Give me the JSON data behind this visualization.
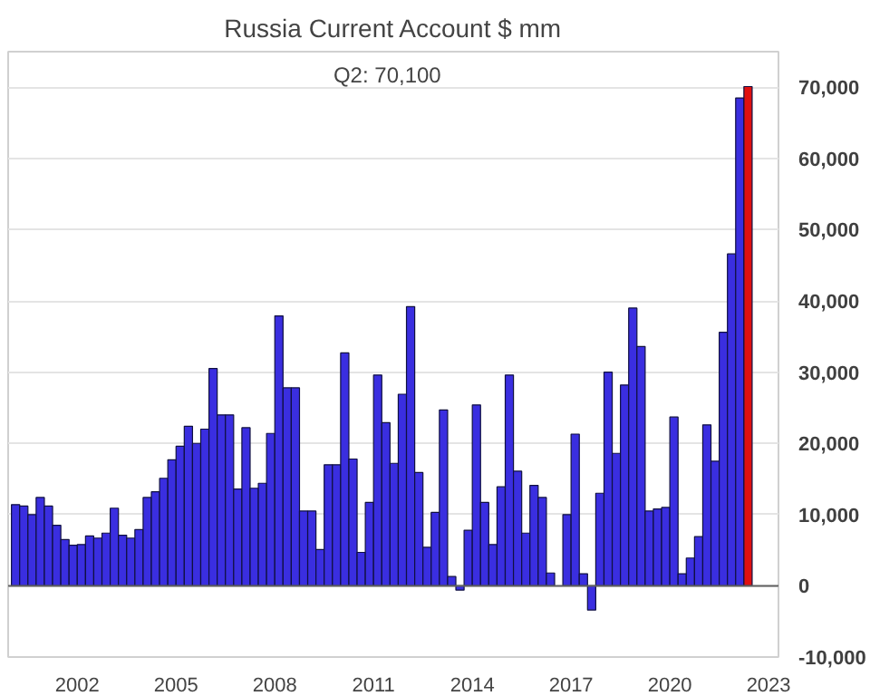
{
  "chart_data": {
    "type": "bar",
    "title": "Russia Current Account $ mm",
    "annotations": [
      "Q2:   70,100"
    ],
    "x": [
      2000.125,
      2000.375,
      2000.625,
      2000.875,
      2001.125,
      2001.375,
      2001.625,
      2001.875,
      2002.125,
      2002.375,
      2002.625,
      2002.875,
      2003.125,
      2003.375,
      2003.625,
      2003.875,
      2004.125,
      2004.375,
      2004.625,
      2004.875,
      2005.125,
      2005.375,
      2005.625,
      2005.875,
      2006.125,
      2006.375,
      2006.625,
      2006.875,
      2007.125,
      2007.375,
      2007.625,
      2007.875,
      2008.125,
      2008.375,
      2008.625,
      2008.875,
      2009.125,
      2009.375,
      2009.625,
      2009.875,
      2010.125,
      2010.375,
      2010.625,
      2010.875,
      2011.125,
      2011.375,
      2011.625,
      2011.875,
      2012.125,
      2012.375,
      2012.625,
      2012.875,
      2013.125,
      2013.375,
      2013.625,
      2013.875,
      2014.125,
      2014.375,
      2014.625,
      2014.875,
      2015.125,
      2015.375,
      2015.625,
      2015.875,
      2016.125,
      2016.375,
      2016.625,
      2016.875,
      2017.125,
      2017.375,
      2017.625,
      2017.875,
      2018.125,
      2018.375,
      2018.625,
      2018.875,
      2019.125,
      2019.375,
      2019.625,
      2019.875,
      2020.125,
      2020.375,
      2020.625,
      2020.875,
      2021.125,
      2021.375,
      2021.625,
      2021.875,
      2022.125,
      2022.375
    ],
    "values": [
      11400,
      11200,
      10000,
      12400,
      11200,
      8500,
      6500,
      5700,
      5800,
      7000,
      6700,
      7400,
      10900,
      7100,
      6700,
      7900,
      12400,
      13200,
      15100,
      17700,
      19600,
      22400,
      20000,
      22000,
      30500,
      24000,
      24000,
      13600,
      22200,
      13700,
      14400,
      21400,
      37900,
      27800,
      27800,
      10500,
      10500,
      5100,
      17000,
      17000,
      32700,
      17800,
      4700,
      11700,
      29600,
      22900,
      17200,
      26900,
      39200,
      15900,
      5400,
      10300,
      24700,
      1300,
      -600,
      7800,
      25400,
      11700,
      5800,
      13900,
      29600,
      16100,
      7400,
      14100,
      12400,
      1800,
      null,
      10000,
      21300,
      1700,
      -3400,
      13000,
      30000,
      18600,
      28200,
      39000,
      33600,
      10500,
      10800,
      11000,
      23700,
      1700,
      3900,
      6900,
      22600,
      17500,
      35600,
      46600,
      68500,
      70100
    ],
    "colors": [
      "#3a2ee0",
      "#3a2ee0",
      "#3a2ee0",
      "#3a2ee0",
      "#3a2ee0",
      "#3a2ee0",
      "#3a2ee0",
      "#3a2ee0",
      "#3a2ee0",
      "#3a2ee0",
      "#3a2ee0",
      "#3a2ee0",
      "#3a2ee0",
      "#3a2ee0",
      "#3a2ee0",
      "#3a2ee0",
      "#3a2ee0",
      "#3a2ee0",
      "#3a2ee0",
      "#3a2ee0",
      "#3a2ee0",
      "#3a2ee0",
      "#3a2ee0",
      "#3a2ee0",
      "#3a2ee0",
      "#3a2ee0",
      "#3a2ee0",
      "#3a2ee0",
      "#3a2ee0",
      "#3a2ee0",
      "#3a2ee0",
      "#3a2ee0",
      "#3a2ee0",
      "#3a2ee0",
      "#3a2ee0",
      "#3a2ee0",
      "#3a2ee0",
      "#3a2ee0",
      "#3a2ee0",
      "#3a2ee0",
      "#3a2ee0",
      "#3a2ee0",
      "#3a2ee0",
      "#3a2ee0",
      "#3a2ee0",
      "#3a2ee0",
      "#3a2ee0",
      "#3a2ee0",
      "#3a2ee0",
      "#3a2ee0",
      "#3a2ee0",
      "#3a2ee0",
      "#3a2ee0",
      "#3a2ee0",
      "#3a2ee0",
      "#3a2ee0",
      "#3a2ee0",
      "#3a2ee0",
      "#3a2ee0",
      "#3a2ee0",
      "#3a2ee0",
      "#3a2ee0",
      "#3a2ee0",
      "#3a2ee0",
      "#3a2ee0",
      "#3a2ee0",
      "#3a2ee0",
      "#3a2ee0",
      "#3a2ee0",
      "#3a2ee0",
      "#3a2ee0",
      "#3a2ee0",
      "#3a2ee0",
      "#3a2ee0",
      "#3a2ee0",
      "#3a2ee0",
      "#3a2ee0",
      "#3a2ee0",
      "#3a2ee0",
      "#3a2ee0",
      "#3a2ee0",
      "#3a2ee0",
      "#3a2ee0",
      "#3a2ee0",
      "#3a2ee0",
      "#3a2ee0",
      "#3a2ee0",
      "#3a2ee0",
      "#3a2ee0",
      "#e01010"
    ],
    "xlim": [
      1999.9,
      2023.3
    ],
    "xticks": [
      2002,
      2005,
      2008,
      2011,
      2014,
      2017,
      2020,
      2023
    ],
    "ylim": [
      -10000,
      75000
    ],
    "yticks": [
      {
        "value": -10000,
        "label": "-10,000"
      },
      0,
      {
        "value": 10000,
        "label": "10,000"
      },
      {
        "value": 20000,
        "label": "20,000"
      },
      {
        "value": 30000,
        "label": "30,000"
      },
      {
        "value": 40000,
        "label": "40,000"
      },
      {
        "value": 50000,
        "label": "50,000"
      },
      {
        "value": 60000,
        "label": "60,000"
      },
      {
        "value": 70000,
        "label": "70,000"
      }
    ],
    "grid": "y"
  }
}
